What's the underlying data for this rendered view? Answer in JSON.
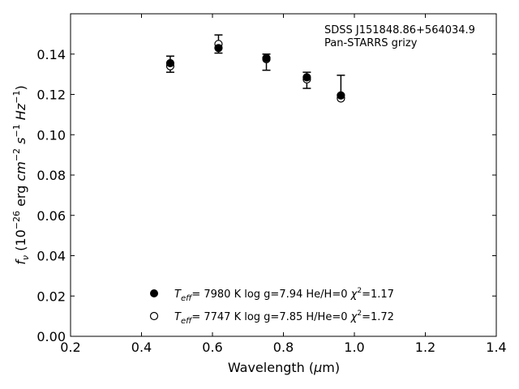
{
  "chart_data": {
    "type": "scatter",
    "xlabel": "Wavelength (μm)",
    "ylabel": "f_ν (10^-26 erg cm^-2 s^-1 Hz^-1)",
    "xlim": [
      0.2,
      1.4
    ],
    "ylim": [
      0.0,
      0.16
    ],
    "xticks": [
      "0.2",
      "0.4",
      "0.6",
      "0.8",
      "1.0",
      "1.2",
      "1.4"
    ],
    "yticks": [
      "0.00",
      "0.02",
      "0.04",
      "0.06",
      "0.08",
      "0.10",
      "0.12",
      "0.14"
    ],
    "grid": false,
    "annotation": [
      "SDSS J151848.86+564034.9",
      "Pan-STARRS grizy"
    ],
    "observed": {
      "x": [
        0.481,
        0.617,
        0.752,
        0.866,
        0.962
      ],
      "y": [
        0.135,
        0.145,
        0.136,
        0.127,
        0.124
      ],
      "err": [
        0.004,
        0.0045,
        0.004,
        0.004,
        0.0055
      ]
    },
    "series": [
      {
        "marker": "filled-circle",
        "legend": "T_eff=  7980 K  log g=7.94  He/H=0  χ²=1.17",
        "x": [
          0.481,
          0.617,
          0.752,
          0.866,
          0.962
        ],
        "y": [
          0.1355,
          0.143,
          0.138,
          0.1285,
          0.1195
        ]
      },
      {
        "marker": "open-circle",
        "legend": "T_eff=  7747 K  log g=7.85  H/He=0  χ²=1.72",
        "x": [
          0.481,
          0.617,
          0.752,
          0.866,
          0.962
        ],
        "y": [
          0.134,
          0.145,
          0.1375,
          0.1275,
          0.118
        ]
      }
    ]
  }
}
